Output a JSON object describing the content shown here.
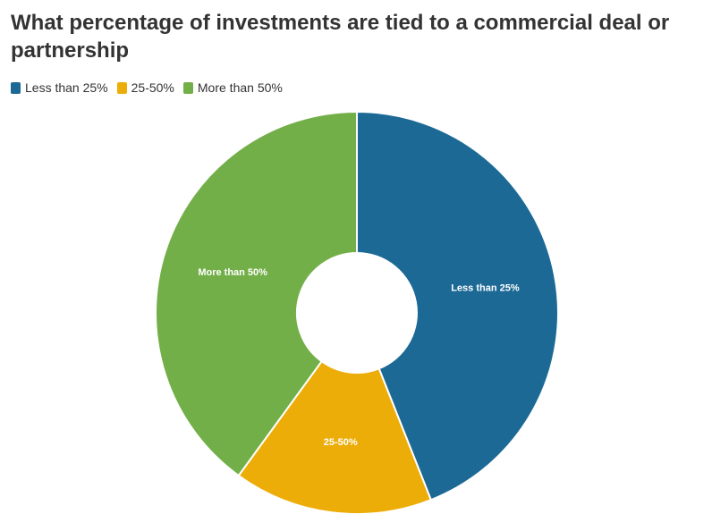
{
  "chart_data": {
    "type": "pie",
    "donut": true,
    "title": "What percentage of investments are tied to a commercial deal or partnership",
    "legend_position": "top-left",
    "categories": [
      "Less than 25%",
      "25-50%",
      "More than 50%"
    ],
    "values": [
      44,
      16,
      40
    ],
    "unit": "%",
    "colors": [
      "#1d6996",
      "#edad08",
      "#73af48"
    ],
    "slice_labels": [
      "Less than 25%",
      "25-50%",
      "More than 50%"
    ]
  }
}
